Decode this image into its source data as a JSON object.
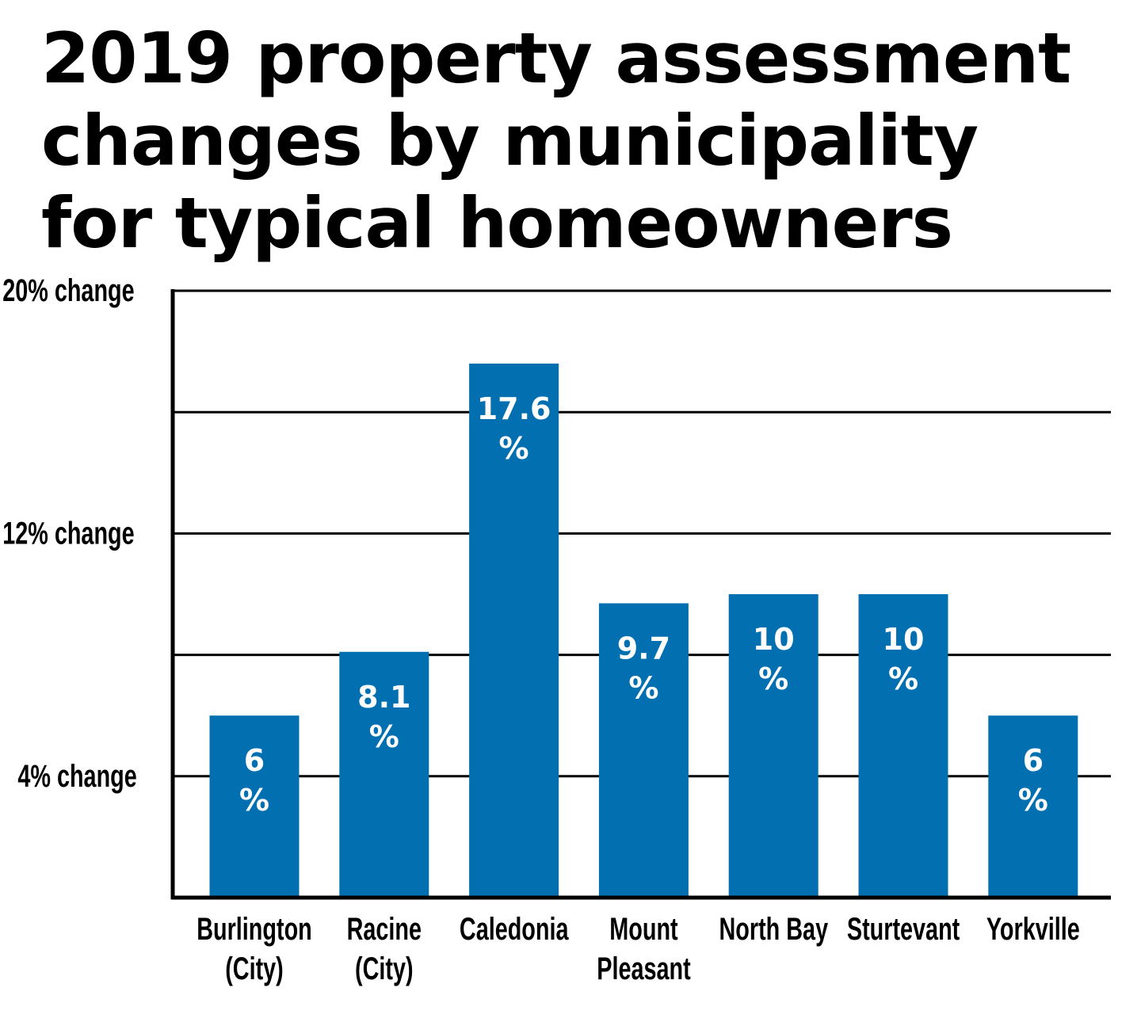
{
  "chart_data": {
    "type": "bar",
    "title": "2019 property assessment changes by municipality for typical homeowners",
    "categories": [
      [
        "Burlington",
        "(City)"
      ],
      [
        "Racine",
        "(City)"
      ],
      [
        "Caledonia"
      ],
      [
        "Mount",
        "Pleasant"
      ],
      [
        "North Bay"
      ],
      [
        "Sturtevant"
      ],
      [
        "Yorkville"
      ]
    ],
    "values": [
      6,
      8.1,
      17.6,
      9.7,
      10,
      10,
      6
    ],
    "data_labels": [
      [
        "6",
        "%"
      ],
      [
        "8.1",
        "%"
      ],
      [
        "17.6",
        "%"
      ],
      [
        "9.7",
        "%"
      ],
      [
        "10",
        "%"
      ],
      [
        "10",
        "%"
      ],
      [
        "6",
        "%"
      ]
    ],
    "y_ticks": [
      {
        "value": 4,
        "label": "4% change"
      },
      {
        "value": 8,
        "label": ""
      },
      {
        "value": 12,
        "label": "12% change"
      },
      {
        "value": 16,
        "label": ""
      },
      {
        "value": 20,
        "label": "20% change"
      }
    ],
    "ylim": [
      0,
      20
    ],
    "grid": true,
    "xlabel": "",
    "ylabel": "",
    "colors": {
      "bar": "#0270B0",
      "grid": "#000000",
      "data_label": "#ffffff"
    }
  }
}
